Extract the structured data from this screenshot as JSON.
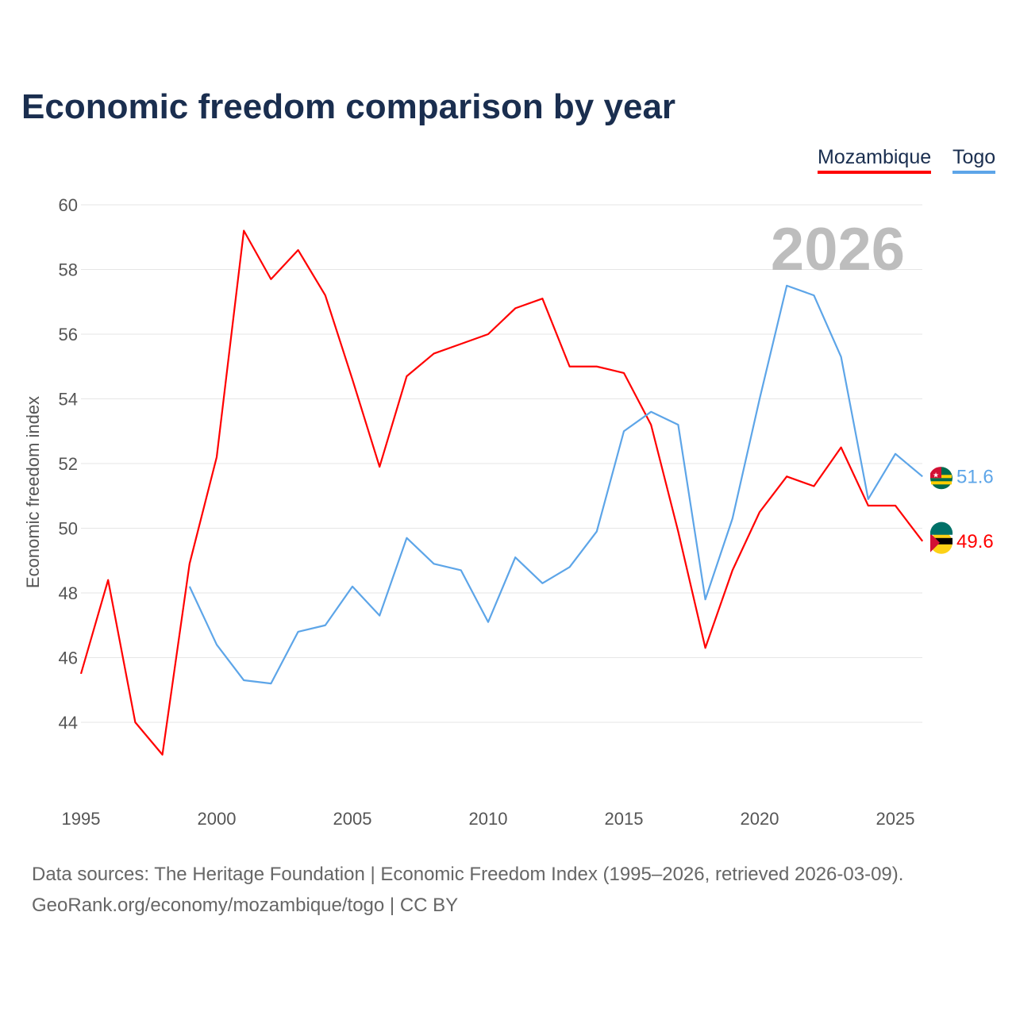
{
  "title": "Economic freedom comparison by year",
  "legend": {
    "mozambique": "Mozambique",
    "togo": "Togo"
  },
  "source_line1": "Data sources: The Heritage Foundation | Economic Freedom Index (1995–2026, retrieved 2026-03-09).",
  "source_line2": "GeoRank.org/economy/mozambique/togo | CC BY",
  "chart_data": {
    "type": "line",
    "title": "Economic freedom comparison by year",
    "xlabel": "",
    "ylabel": "Economic freedom index",
    "year_watermark": "2026",
    "xlim": [
      1995,
      2026
    ],
    "ylim": [
      42,
      60
    ],
    "x_ticks": [
      1995,
      2000,
      2005,
      2010,
      2015,
      2020,
      2025
    ],
    "y_ticks": [
      44,
      46,
      48,
      50,
      52,
      54,
      56,
      58,
      60
    ],
    "grid": true,
    "legend_position": "top-right",
    "series": [
      {
        "name": "Mozambique",
        "color": "#ff0000",
        "end_label": "49.6",
        "x": [
          1995,
          1996,
          1997,
          1998,
          1999,
          2000,
          2001,
          2002,
          2003,
          2004,
          2005,
          2006,
          2007,
          2008,
          2009,
          2010,
          2011,
          2012,
          2013,
          2014,
          2015,
          2016,
          2017,
          2018,
          2019,
          2020,
          2021,
          2022,
          2023,
          2024,
          2025,
          2026
        ],
        "values": [
          45.5,
          48.4,
          44.0,
          43.0,
          48.9,
          52.2,
          59.2,
          57.7,
          58.6,
          57.2,
          54.6,
          51.9,
          54.7,
          55.4,
          55.7,
          56.0,
          56.8,
          57.1,
          55.0,
          55.0,
          54.8,
          53.2,
          49.9,
          46.3,
          48.7,
          50.5,
          51.6,
          51.3,
          52.5,
          50.7,
          50.7,
          49.6
        ]
      },
      {
        "name": "Togo",
        "color": "#5da5e8",
        "end_label": "51.6",
        "x": [
          1999,
          2000,
          2001,
          2002,
          2003,
          2004,
          2005,
          2006,
          2007,
          2008,
          2009,
          2010,
          2011,
          2012,
          2013,
          2014,
          2015,
          2016,
          2017,
          2018,
          2019,
          2020,
          2021,
          2022,
          2023,
          2024,
          2025,
          2026
        ],
        "values": [
          48.2,
          46.4,
          45.3,
          45.2,
          46.8,
          47.0,
          48.2,
          47.3,
          49.7,
          48.9,
          48.7,
          47.1,
          49.1,
          48.3,
          48.8,
          49.9,
          53.0,
          53.6,
          53.2,
          47.8,
          50.3,
          54.0,
          57.5,
          57.2,
          55.3,
          50.9,
          52.3,
          51.6
        ]
      }
    ]
  }
}
